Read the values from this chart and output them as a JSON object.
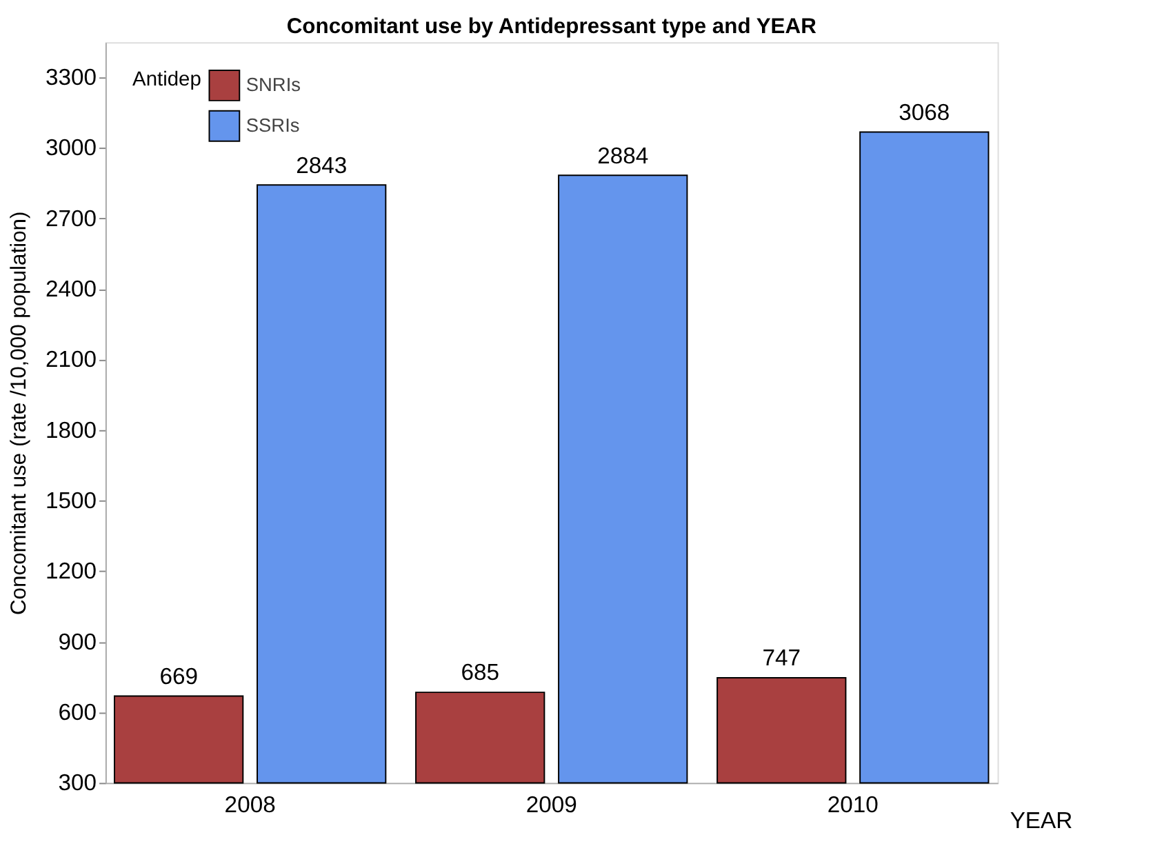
{
  "chart_data": {
    "type": "bar",
    "title": "Concomitant use by Antidepressant type and YEAR",
    "xlabel": "YEAR",
    "ylabel": "Concomitant use  (rate /10,000  population)",
    "legend_title": "Antidep",
    "categories": [
      "2008",
      "2009",
      "2010"
    ],
    "series": [
      {
        "name": "SNRIs",
        "color": "#a94040",
        "values": [
          669,
          685,
          747
        ]
      },
      {
        "name": "SSRIs",
        "color": "#6495ed",
        "values": [
          2843,
          2884,
          3068
        ]
      }
    ],
    "ylim": [
      300,
      3450
    ],
    "yticks": [
      300,
      600,
      900,
      1200,
      1500,
      1800,
      2100,
      2400,
      2700,
      3000,
      3300
    ],
    "data_labels": true,
    "grid": false,
    "legend": "top left"
  }
}
